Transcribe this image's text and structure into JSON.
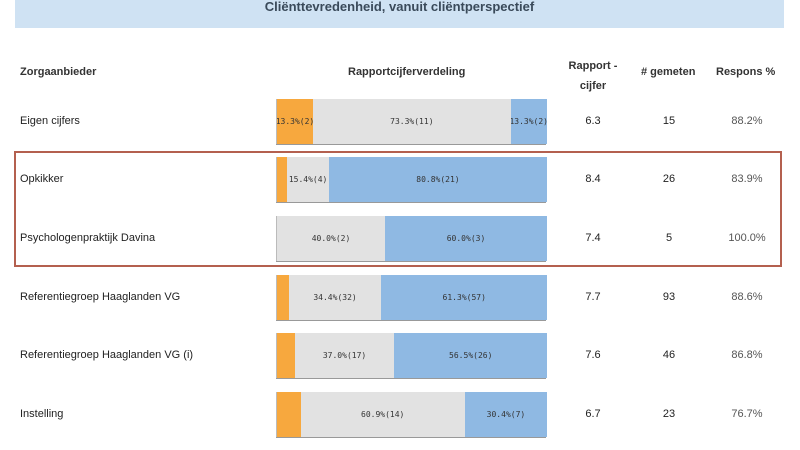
{
  "banner": {
    "title": "Cliënttevredenheid, vanuit cliëntperspectief"
  },
  "headers": {
    "provider": "Zorgaanbieder",
    "distribution": "Rapportcijferverdeling",
    "grade_line1": "Rapport -",
    "grade_line2": "cijfer",
    "measured": "# gemeten",
    "response": "Respons %"
  },
  "colors": {
    "low": "#f7a83e",
    "mid": "#e2e2e2",
    "high": "#8fb9e3",
    "highlight": "#b4604f"
  },
  "rows": [
    {
      "name": "Eigen cijfers",
      "grade": "6.3",
      "measured": "15",
      "response": "88.2%",
      "segments": [
        {
          "fraction": 0.133,
          "label": "13.3%(2)"
        },
        {
          "fraction": 0.733,
          "label": "73.3%(11)"
        },
        {
          "fraction": 0.133,
          "label": "13.3%(2)"
        }
      ]
    },
    {
      "name": "Opkikker",
      "grade": "8.4",
      "measured": "26",
      "response": "83.9%",
      "segments": [
        {
          "fraction": 0.038,
          "label": ""
        },
        {
          "fraction": 0.154,
          "label": "15.4%(4)"
        },
        {
          "fraction": 0.808,
          "label": "80.8%(21)"
        }
      ]
    },
    {
      "name": "Psychologenpraktijk Davina",
      "grade": "7.4",
      "measured": "5",
      "response": "100.0%",
      "segments": [
        {
          "fraction": 0.0,
          "label": ""
        },
        {
          "fraction": 0.4,
          "label": "40.0%(2)"
        },
        {
          "fraction": 0.6,
          "label": "60.0%(3)"
        }
      ]
    },
    {
      "name": "Referentiegroep Haaglanden VG",
      "grade": "7.7",
      "measured": "93",
      "response": "88.6%",
      "segments": [
        {
          "fraction": 0.043,
          "label": ""
        },
        {
          "fraction": 0.344,
          "label": "34.4%(32)"
        },
        {
          "fraction": 0.613,
          "label": "61.3%(57)"
        }
      ]
    },
    {
      "name": "Referentiegroep Haaglanden VG (i)",
      "grade": "7.6",
      "measured": "46",
      "response": "86.8%",
      "segments": [
        {
          "fraction": 0.065,
          "label": ""
        },
        {
          "fraction": 0.37,
          "label": "37.0%(17)"
        },
        {
          "fraction": 0.565,
          "label": "56.5%(26)"
        }
      ]
    },
    {
      "name": "Instelling",
      "grade": "6.7",
      "measured": "23",
      "response": "76.7%",
      "segments": [
        {
          "fraction": 0.087,
          "label": ""
        },
        {
          "fraction": 0.609,
          "label": "60.9%(14)"
        },
        {
          "fraction": 0.304,
          "label": "30.4%(7)"
        }
      ]
    }
  ]
}
